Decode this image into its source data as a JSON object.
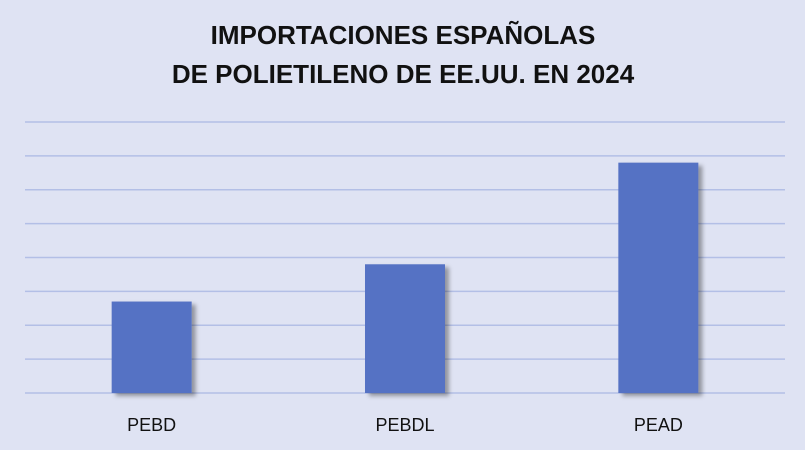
{
  "chart_data": {
    "type": "bar",
    "title": [
      "IMPORTACIONES ESPAÑOLAS",
      "DE POLIETILENO DE EE.UU. EN 2024"
    ],
    "categories": [
      "PEBD",
      "PEBDL",
      "PEAD"
    ],
    "values": [
      2.7,
      3.8,
      6.8
    ],
    "color": "#5572c4",
    "ylim": [
      0,
      8
    ],
    "yticks": [
      0,
      1,
      2,
      3,
      4,
      5,
      6,
      7,
      8
    ],
    "grid": true
  }
}
